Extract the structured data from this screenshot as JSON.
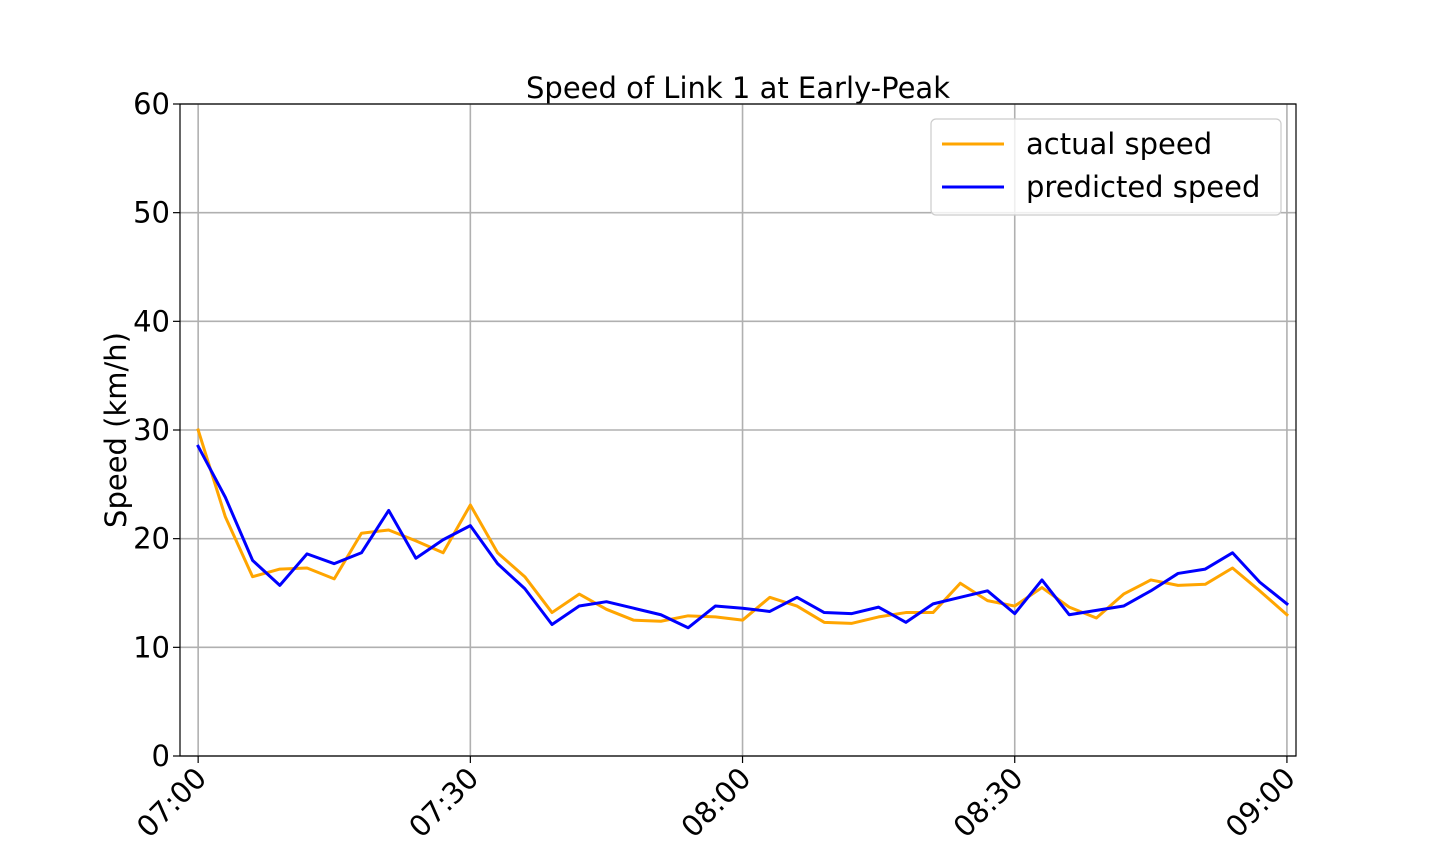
{
  "chart_data": {
    "type": "line",
    "title": "Speed of Link 1 at Early-Peak",
    "xlabel": "",
    "ylabel": "Speed (km/h)",
    "ylim": [
      0,
      60
    ],
    "yticks": [
      "0",
      "10",
      "20",
      "30",
      "40",
      "50",
      "60"
    ],
    "xticks": [
      "07:00",
      "07:30",
      "08:00",
      "08:30",
      "09:00"
    ],
    "xlim": [
      "06:58",
      "09:01"
    ],
    "x": [
      "07:00",
      "07:03",
      "07:06",
      "07:09",
      "07:12",
      "07:15",
      "07:18",
      "07:21",
      "07:24",
      "07:27",
      "07:30",
      "07:33",
      "07:36",
      "07:39",
      "07:42",
      "07:45",
      "07:48",
      "07:51",
      "07:54",
      "07:57",
      "08:00",
      "08:03",
      "08:06",
      "08:09",
      "08:12",
      "08:15",
      "08:18",
      "08:21",
      "08:24",
      "08:27",
      "08:30",
      "08:33",
      "08:36",
      "08:39",
      "08:42",
      "08:45",
      "08:48",
      "08:51",
      "08:54",
      "08:57",
      "09:00"
    ],
    "grid": true,
    "legend_position": "top-right",
    "series": [
      {
        "name": "actual speed",
        "color": "#FFA500",
        "values": [
          30.0,
          22.0,
          16.5,
          17.2,
          17.3,
          16.3,
          20.5,
          20.8,
          19.8,
          18.7,
          23.1,
          18.7,
          16.5,
          13.2,
          14.9,
          13.5,
          12.5,
          12.4,
          12.9,
          12.8,
          12.5,
          14.6,
          13.8,
          12.3,
          12.2,
          12.8,
          13.2,
          13.2,
          15.9,
          14.3,
          13.8,
          15.5,
          13.7,
          12.7,
          14.9,
          16.2,
          15.7,
          15.8,
          17.3,
          15.2,
          13.0
        ]
      },
      {
        "name": "predicted speed",
        "color": "#0000FF",
        "values": [
          28.5,
          23.8,
          18.0,
          15.7,
          18.6,
          17.7,
          18.7,
          22.6,
          18.2,
          19.9,
          21.2,
          17.7,
          15.4,
          12.1,
          13.8,
          14.2,
          13.6,
          13.0,
          11.8,
          13.8,
          13.6,
          13.3,
          14.6,
          13.2,
          13.1,
          13.7,
          12.3,
          14.0,
          14.6,
          15.2,
          13.1,
          16.2,
          13.0,
          13.4,
          13.8,
          15.2,
          16.8,
          17.2,
          18.7,
          16.0,
          14.0
        ]
      }
    ]
  }
}
